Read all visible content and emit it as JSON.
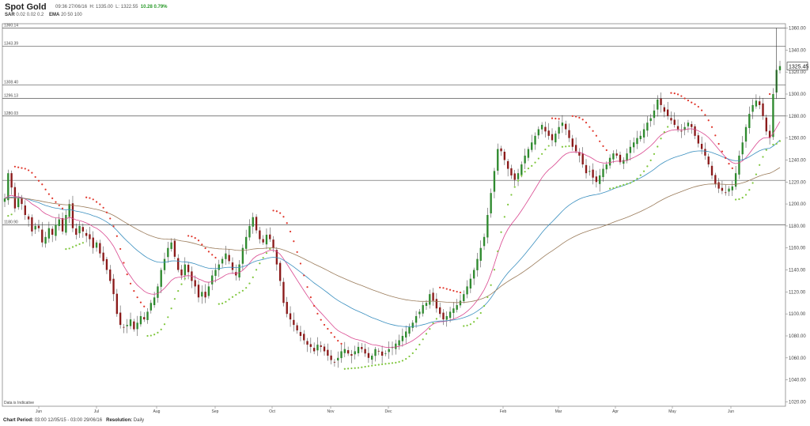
{
  "header": {
    "title": "Spot Gold",
    "datetime": "09:36 27/06/16",
    "high": "H: 1335.00",
    "low": "L: 1322.55",
    "change": "10.28 0.79%",
    "sar_label": "SAR",
    "sar_params": "0.02 0.02 0.2",
    "ema_label": "EMA",
    "ema_params": "20 50 100"
  },
  "footer": {
    "period_label": "Chart Period:",
    "period_value": "03:00 12/05/15 - 03:00 29/06/16",
    "resolution_label": "Resolution:",
    "resolution_value": "Daily"
  },
  "disclaimer": "Data is Indicative",
  "chart_data": {
    "type": "candlestick",
    "title": "Spot Gold",
    "ylim": [
      1016,
      1364
    ],
    "y_ticks": [
      1020,
      1040,
      1060,
      1080,
      1100,
      1120,
      1140,
      1160,
      1180,
      1200,
      1220,
      1240,
      1260,
      1280,
      1300,
      1320,
      1340,
      1360
    ],
    "y_tick_labels": [
      "1020.00",
      "1040.00",
      "1060.00",
      "1080.00",
      "1100.00",
      "1120.00",
      "1140.00",
      "1160.00",
      "1180.00",
      "1200.00",
      "1220.00",
      "1240.00",
      "1260.00",
      "1280.00",
      "1300.00",
      "1320.00",
      "1340.00",
      "1360.00"
    ],
    "x_ticks": [
      "Jun",
      "Jul",
      "Aug",
      "Sep",
      "Oct",
      "Nov",
      "Dec",
      "Feb",
      "Mar",
      "Apr",
      "May",
      "Jun"
    ],
    "last_price": "1325.45",
    "horizontal_levels": [
      {
        "label": "1360.14",
        "value": 1360.14
      },
      {
        "label": "1343.39",
        "value": 1343.39
      },
      {
        "label": "1308.40",
        "value": 1308.4
      },
      {
        "label": "1296.13",
        "value": 1296.13
      },
      {
        "label": "1280.03",
        "value": 1280.03
      },
      {
        "label": "",
        "value": 1221.5
      },
      {
        "label": "1180.90",
        "value": 1180.9
      }
    ],
    "series": [
      {
        "name": "Price",
        "values": [
          1205,
          1228,
          1215,
          1196,
          1205,
          1200,
          1190,
          1186,
          1175,
          1180,
          1178,
          1165,
          1170,
          1178,
          1172,
          1181,
          1186,
          1175,
          1190,
          1200,
          1178,
          1172,
          1180,
          1175,
          1171,
          1168,
          1160,
          1165,
          1155,
          1148,
          1140,
          1130,
          1118,
          1100,
          1090,
          1088,
          1090,
          1095,
          1086,
          1092,
          1098,
          1095,
          1102,
          1110,
          1115,
          1125,
          1140,
          1150,
          1160,
          1165,
          1152,
          1140,
          1135,
          1145,
          1138,
          1130,
          1125,
          1115,
          1120,
          1115,
          1125,
          1135,
          1140,
          1145,
          1150,
          1155,
          1148,
          1140,
          1135,
          1145,
          1160,
          1170,
          1180,
          1188,
          1176,
          1168,
          1165,
          1172,
          1168,
          1160,
          1145,
          1130,
          1110,
          1100,
          1095,
          1090,
          1085,
          1080,
          1076,
          1072,
          1070,
          1066,
          1072,
          1070,
          1066,
          1062,
          1058,
          1056,
          1060,
          1066,
          1068,
          1064,
          1062,
          1066,
          1070,
          1068,
          1064,
          1060,
          1062,
          1068,
          1066,
          1062,
          1064,
          1068,
          1070,
          1073,
          1076,
          1080,
          1084,
          1088,
          1092,
          1098,
          1102,
          1108,
          1110,
          1118,
          1112,
          1105,
          1100,
          1095,
          1098,
          1102,
          1105,
          1108,
          1112,
          1118,
          1125,
          1132,
          1140,
          1150,
          1160,
          1170,
          1190,
          1210,
          1230,
          1250,
          1248,
          1240,
          1232,
          1226,
          1222,
          1228,
          1236,
          1244,
          1250,
          1256,
          1262,
          1268,
          1272,
          1266,
          1262,
          1258,
          1264,
          1270,
          1274,
          1268,
          1260,
          1252,
          1248,
          1244,
          1236,
          1228,
          1230,
          1224,
          1220,
          1226,
          1232,
          1236,
          1242,
          1246,
          1244,
          1238,
          1240,
          1246,
          1252,
          1256,
          1260,
          1262,
          1268,
          1274,
          1278,
          1285,
          1295,
          1290,
          1284,
          1280,
          1276,
          1272,
          1268,
          1266,
          1270,
          1274,
          1270,
          1262,
          1255,
          1250,
          1244,
          1236,
          1226,
          1218,
          1214,
          1212,
          1210,
          1214,
          1216,
          1228,
          1244,
          1256,
          1270,
          1282,
          1290,
          1294,
          1290,
          1280,
          1266,
          1260,
          1300,
          1322,
          1325.45
        ]
      },
      {
        "name": "EMA 20"
      },
      {
        "name": "EMA 50"
      },
      {
        "name": "EMA 100"
      },
      {
        "name": "SAR"
      }
    ],
    "grid": false,
    "legend": "none"
  }
}
